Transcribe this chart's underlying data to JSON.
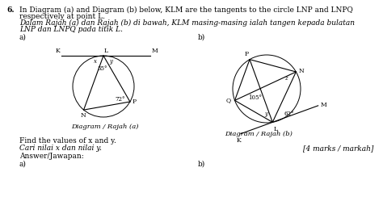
{
  "question_number": "6.",
  "title_en": "In Diagram (a) and Diagram (b) below, KLM are the tangents to the circle LNP and LNPQ",
  "title_en2": "respectively at point L.",
  "title_my": "Dalam Rajah (a) dan Rajah (b) di bawah, KLM masing-masing ialah tangen kepada bulatan",
  "title_my2": "LNP dan LNPQ pada titik L.",
  "sub_a": "a)",
  "sub_b": "b)",
  "diagram_a_label": "Diagram / Rajah (a)",
  "diagram_b_label": "Diagram / Rajah (b)",
  "find_text_en": "Find the values of x and y.",
  "find_text_my": "Cari nilai x dan nilai y.",
  "marks": "[4 marks / markah]",
  "answer_text": "Answer/Jawapan:",
  "ans_a": "a)",
  "ans_b": "b)",
  "angle_55": "55°",
  "angle_72": "72°",
  "angle_105": "105°",
  "angle_62": "62°",
  "label_x_a": "x",
  "label_y_a": "y",
  "label_z_b": "z",
  "label_y_b": "y",
  "bg_color": "#ffffff",
  "text_color": "#000000",
  "line_color": "#000000",
  "circle_color": "#000000"
}
